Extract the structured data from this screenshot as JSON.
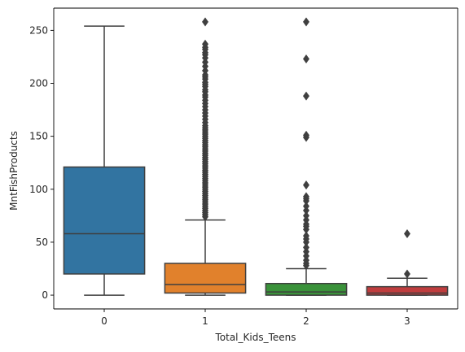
{
  "chart_data": {
    "type": "box",
    "xlabel": "Total_Kids_Teens",
    "ylabel": "MntFishProducts",
    "categories": [
      "0",
      "1",
      "2",
      "3"
    ],
    "ylim": [
      -13,
      271
    ],
    "yticks": [
      0,
      50,
      100,
      150,
      200,
      250
    ],
    "grid": false,
    "colors": {
      "box_edge": "#3f3f3f",
      "axes": "#000000"
    },
    "boxes": [
      {
        "category": "0",
        "color": "#3274a1",
        "whisker_low": 0,
        "q1": 20,
        "median": 58,
        "q3": 121,
        "whisker_high": 254,
        "outliers": []
      },
      {
        "category": "1",
        "color": "#e1812c",
        "whisker_low": 0,
        "q1": 2,
        "median": 10,
        "q3": 30,
        "whisker_high": 71,
        "outliers": [
          74,
          76,
          78,
          80,
          82,
          84,
          86,
          88,
          90,
          92,
          94,
          96,
          98,
          100,
          102,
          104,
          106,
          108,
          110,
          112,
          114,
          116,
          118,
          120,
          122,
          124,
          126,
          128,
          130,
          132,
          134,
          136,
          138,
          140,
          142,
          144,
          146,
          148,
          150,
          152,
          154,
          156,
          158,
          160,
          163,
          166,
          169,
          172,
          175,
          178,
          181,
          184,
          187,
          189,
          192,
          194,
          197,
          199,
          201,
          204,
          206,
          208,
          212,
          216,
          220,
          224,
          227,
          229,
          232,
          234,
          237,
          258
        ]
      },
      {
        "category": "2",
        "color": "#3a923a",
        "whisker_low": 0,
        "q1": 0,
        "median": 3,
        "q3": 11,
        "whisker_high": 25,
        "outliers": [
          28,
          30,
          33,
          37,
          41,
          45,
          50,
          53,
          56,
          62,
          65,
          67,
          71,
          75,
          80,
          84,
          89,
          91,
          93,
          104,
          149,
          151,
          188,
          223,
          258
        ]
      },
      {
        "category": "3",
        "color": "#c03d3e",
        "whisker_low": 0,
        "q1": 0,
        "median": 2,
        "q3": 8,
        "whisker_high": 16,
        "outliers": [
          20,
          58
        ]
      }
    ]
  }
}
